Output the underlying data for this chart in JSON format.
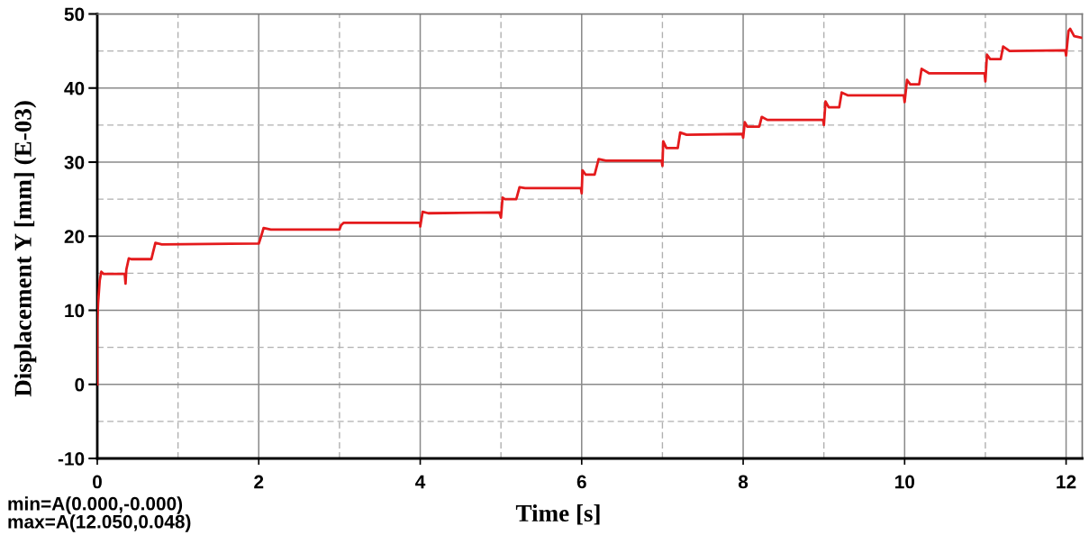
{
  "chart_data": {
    "type": "line",
    "xlabel": "Time [s]",
    "ylabel": "Displacement Y [mm] (E-03)",
    "annotations": [
      "min=A(0.000,-0.000)",
      "max=A(12.050,0.048)"
    ],
    "xlim": [
      0,
      12.2
    ],
    "ylim": [
      -10,
      50
    ],
    "xticks": [
      0,
      {
        "value": 1,
        "label": null
      },
      2,
      {
        "value": 3,
        "label": null
      },
      4,
      {
        "value": 5,
        "label": null
      },
      6,
      {
        "value": 7,
        "label": null
      },
      8,
      {
        "value": 9,
        "label": null
      },
      10,
      {
        "value": 11,
        "label": null
      },
      12
    ],
    "yticks": [
      -10,
      {
        "value": -5,
        "label": null
      },
      0,
      {
        "value": 5,
        "label": null
      },
      10,
      {
        "value": 15,
        "label": null
      },
      20,
      {
        "value": 25,
        "label": null
      },
      30,
      {
        "value": 35,
        "label": null
      },
      40,
      {
        "value": 45,
        "label": null
      },
      50
    ],
    "grid": true,
    "line_style": "solid",
    "x": [
      0,
      0,
      0.01,
      0.03,
      0.05,
      0.08,
      0.34,
      0.35,
      0.36,
      0.39,
      0.42,
      0.67,
      0.69,
      0.72,
      0.8,
      2.0,
      2.03,
      2.06,
      2.15,
      3.0,
      3.02,
      3.05,
      4.0,
      4.0,
      4.03,
      4.1,
      4.98,
      5.0,
      5.02,
      5.05,
      5.19,
      5.23,
      5.3,
      5.99,
      6.0,
      6.01,
      6.05,
      6.16,
      6.21,
      6.3,
      6.99,
      7.0,
      7.01,
      7.05,
      7.19,
      7.22,
      7.3,
      7.99,
      8.0,
      8.02,
      8.05,
      8.2,
      8.23,
      8.3,
      8.99,
      9.0,
      9.02,
      9.06,
      9.19,
      9.22,
      9.3,
      9.99,
      10.0,
      10.03,
      10.07,
      10.18,
      10.21,
      10.3,
      10.99,
      11.0,
      11.02,
      11.06,
      11.19,
      11.22,
      11.3,
      11.99,
      12.0,
      12.03,
      12.05,
      12.1,
      12.19
    ],
    "series": [
      {
        "color": "#e41a1c",
        "values": [
          0,
          8.5,
          11,
          14.0,
          15.2,
          14.9,
          14.9,
          13.6,
          15.5,
          17.0,
          16.9,
          16.9,
          17.8,
          19.1,
          18.9,
          19.0,
          20.0,
          21.1,
          20.9,
          20.9,
          21.5,
          21.8,
          21.8,
          21.3,
          23.3,
          23.1,
          23.2,
          22.5,
          25.2,
          25.0,
          25.0,
          26.6,
          26.5,
          26.5,
          25.8,
          28.9,
          28.3,
          28.3,
          30.4,
          30.2,
          30.2,
          29.5,
          32.8,
          31.9,
          31.9,
          34.0,
          33.7,
          33.8,
          33.3,
          35.4,
          34.8,
          34.8,
          36.1,
          35.7,
          35.7,
          35.0,
          38.2,
          37.4,
          37.4,
          39.4,
          39.0,
          39.0,
          38.1,
          41.1,
          40.5,
          40.5,
          42.6,
          42.0,
          42.0,
          40.9,
          44.5,
          43.9,
          43.9,
          45.6,
          45.0,
          45.1,
          44.4,
          47.7,
          48.0,
          47.0,
          46.8
        ]
      }
    ]
  }
}
